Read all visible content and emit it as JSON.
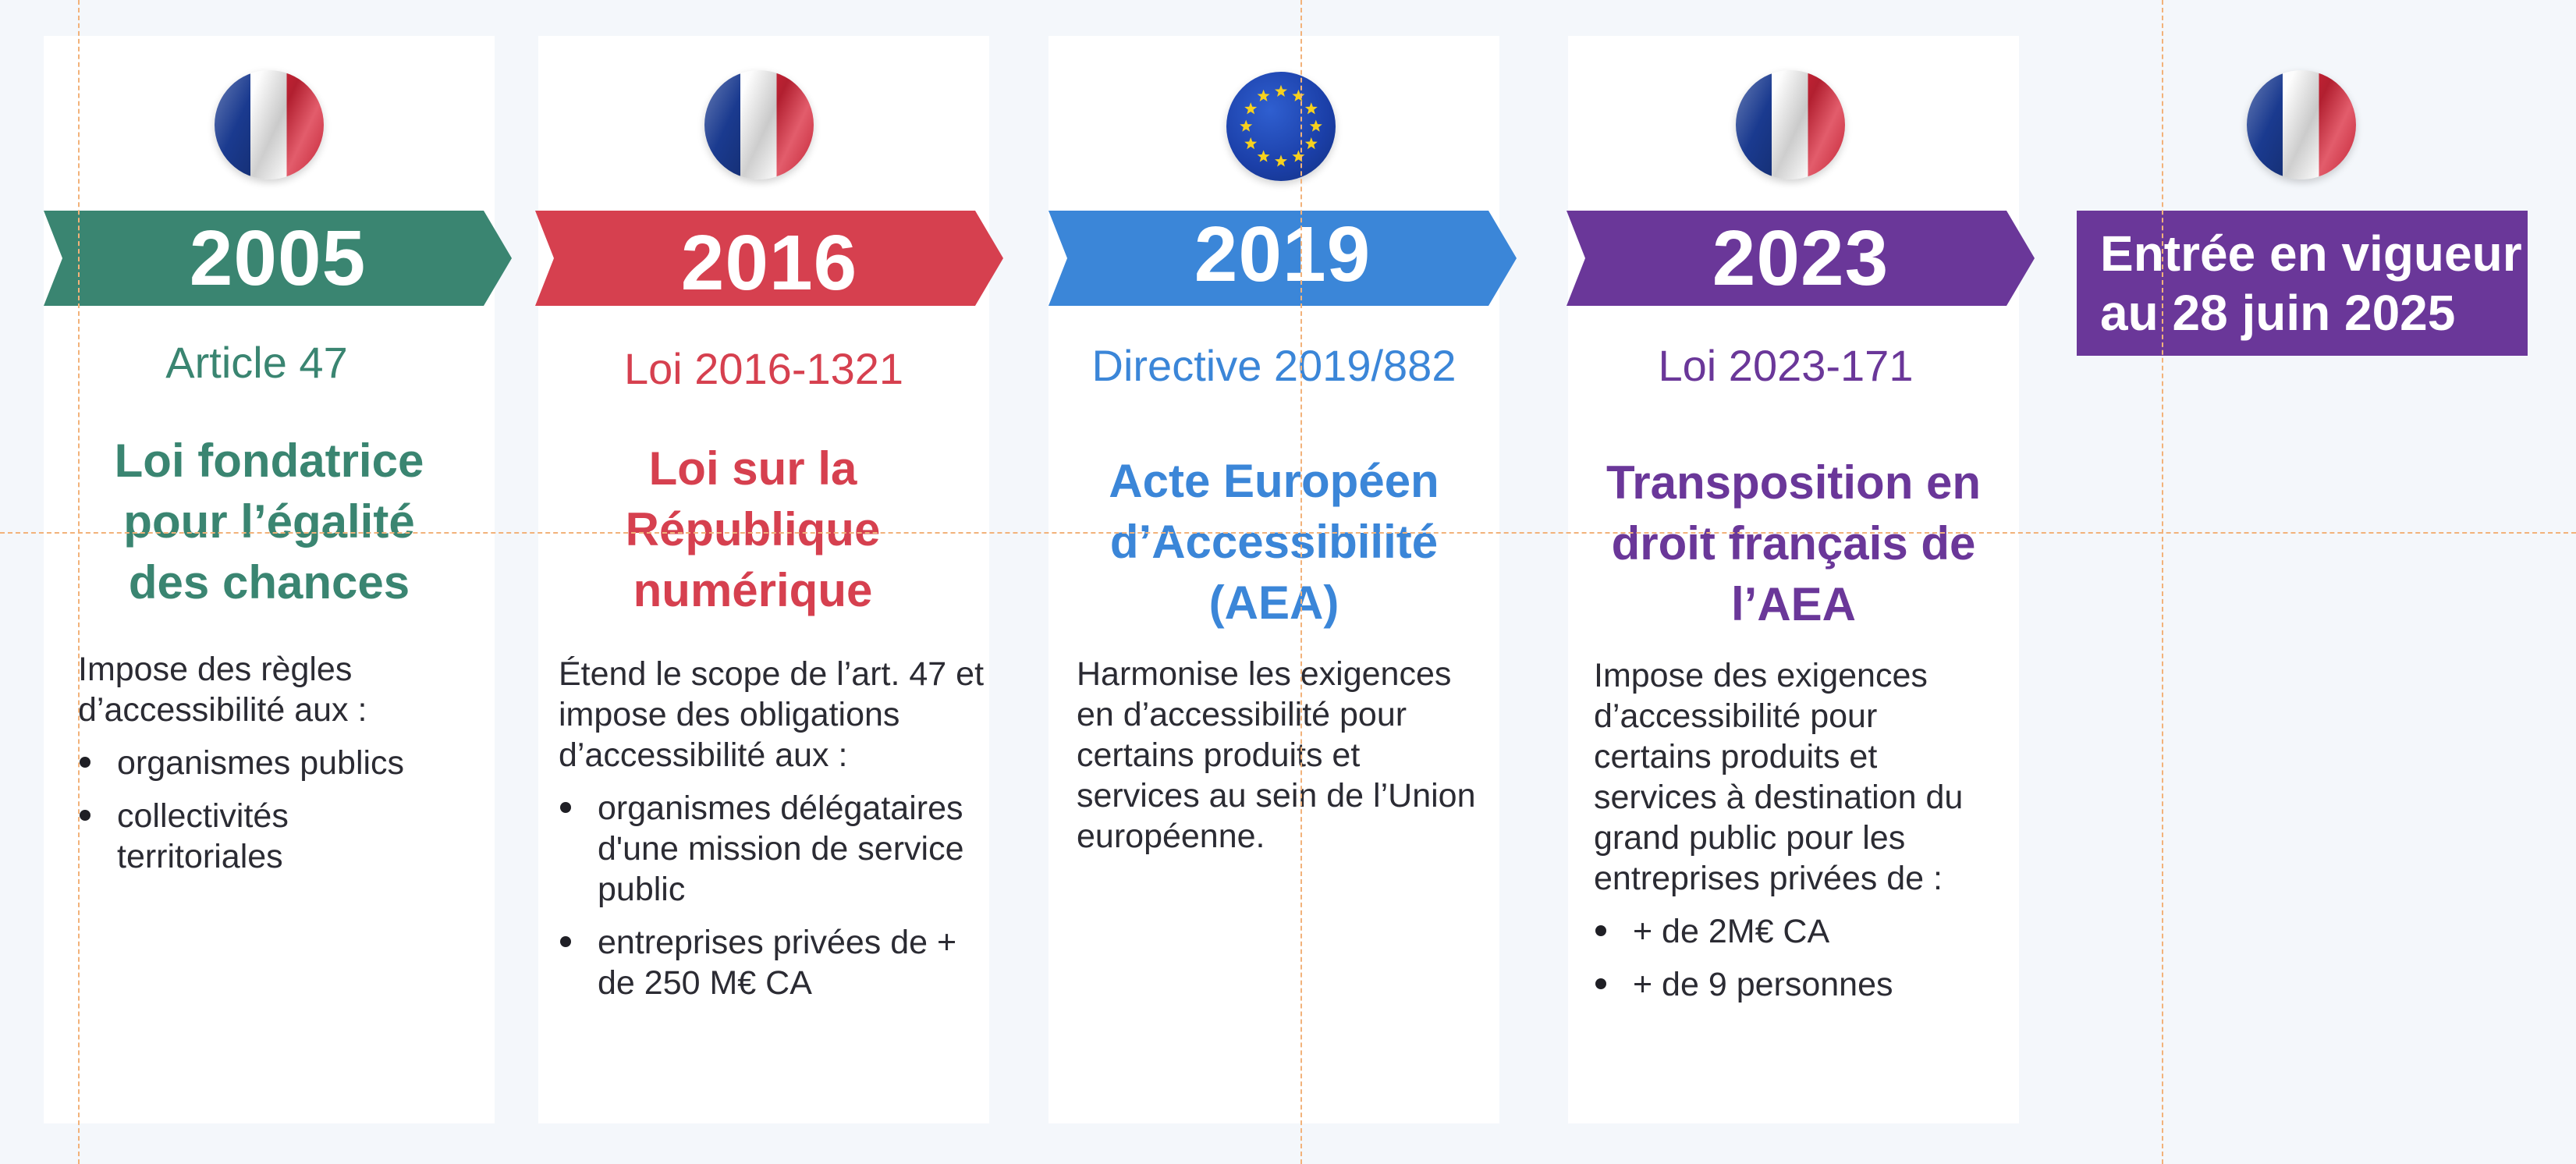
{
  "columns": [
    {
      "year": "2005",
      "flag": "france-flag-icon",
      "color": "#3a8571",
      "reference": "Article 47",
      "title_lines": [
        "Loi fondatrice",
        "pour l’égalité",
        "des chances"
      ],
      "description": "Impose des règles d’accessibilité aux :",
      "bullets": [
        "organismes publics",
        "collectivités territoriales"
      ]
    },
    {
      "year": "2016",
      "flag": "france-flag-icon",
      "color": "#d6404f",
      "reference": "Loi 2016-1321",
      "title_lines": [
        "Loi sur la",
        "République",
        "numérique"
      ],
      "description": "Étend le scope de l’art. 47 et impose des obligations d’accessibilité aux :",
      "bullets": [
        "organismes délégataires d'une mission de service public",
        "entreprises privées de + de 250 M€ CA"
      ]
    },
    {
      "year": "2019",
      "flag": "eu-flag-icon",
      "color": "#3b86d8",
      "reference": "Directive 2019/882",
      "title_lines": [
        "Acte Européen",
        "d’Accessibilité",
        "(AEA)"
      ],
      "description": "Harmonise les exigences en d’accessibilité pour certains produits et services au sein de l’Union européenne.",
      "bullets": []
    },
    {
      "year": "2023",
      "flag": "france-flag-icon",
      "color": "#6a3799",
      "reference": "Loi 2023-171",
      "title_lines": [
        "Transposition en",
        "droit français de",
        "l’AEA"
      ],
      "description": "Impose des exigences d’accessibilité pour certains produits et services à destination du grand public pour les entreprises privées de :",
      "bullets": [
        "+ de 2M€ CA",
        "+ de 9 personnes"
      ]
    }
  ],
  "final": {
    "flag": "france-flag-icon",
    "color": "#6a3799",
    "lines": [
      "Entrée en vigueur",
      "au 28 juin 2025"
    ]
  },
  "colors": {
    "background": "#f4f7fb",
    "card": "#ffffff",
    "guide": "#f2b27a"
  }
}
